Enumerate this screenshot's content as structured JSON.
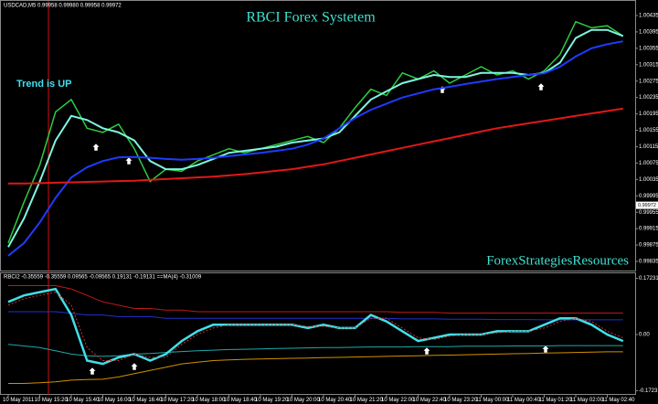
{
  "chart_data": [
    {
      "type": "line",
      "title": "RBCI Forex Systetem",
      "subtitle": "USDCAD,M5 0.99958 0.99980 0.99958 0.99972",
      "annotations": [
        "Trend is UP",
        "ForexStrategiesResources"
      ],
      "ylim": [
        0.99815,
        1.00455
      ],
      "yticks": [
        0.99835,
        0.99875,
        0.99915,
        0.99955,
        0.99995,
        1.00035,
        1.00075,
        1.00115,
        1.00155,
        1.00195,
        1.00235,
        1.00275,
        1.00315,
        1.00355,
        1.00395,
        1.00435
      ],
      "last_price": 0.99972,
      "grid": false,
      "series": [
        {
          "color": "#2ecc40",
          "dashed": false,
          "width": 1.5,
          "values": [
            0.9988,
            0.9998,
            1.0007,
            1.002,
            1.0023,
            1.0016,
            1.0015,
            1.0017,
            1.0011,
            1.0003,
            1.0006,
            1.00055,
            1.0008,
            1.00095,
            1.0011,
            1.001,
            1.0011,
            1.0012,
            1.0013,
            1.0014,
            1.00125,
            1.0016,
            1.0021,
            1.00255,
            1.0024,
            1.00295,
            1.0028,
            1.003,
            1.0027,
            1.0029,
            1.0031,
            1.0029,
            1.003,
            1.0028,
            1.003,
            1.0034,
            1.0042,
            1.00405,
            1.0041,
            1.00385
          ]
        },
        {
          "color": "#7ff5e0",
          "dashed": false,
          "width": 2,
          "values": [
            0.9987,
            0.9994,
            1.0003,
            1.0013,
            1.0019,
            1.0018,
            1.0016,
            1.0015,
            1.0013,
            1.0008,
            1.0006,
            1.0006,
            1.0007,
            1.00085,
            1.001,
            1.00105,
            1.0011,
            1.00115,
            1.00125,
            1.0013,
            1.00135,
            1.0015,
            1.0019,
            1.0023,
            1.0025,
            1.0027,
            1.0028,
            1.0029,
            1.00285,
            1.00285,
            1.00295,
            1.00295,
            1.00295,
            1.0029,
            1.00295,
            1.0032,
            1.0038,
            1.004,
            1.004,
            1.00385
          ]
        },
        {
          "color": "#1e3cff",
          "dashed": false,
          "width": 2,
          "values": [
            0.99849,
            0.9988,
            0.9993,
            0.9999,
            1.0004,
            1.00065,
            1.0008,
            1.00089,
            1.0009,
            1.00088,
            1.00085,
            1.00083,
            1.00085,
            1.00088,
            1.00092,
            1.00096,
            1.001,
            1.00105,
            1.0011,
            1.0012,
            1.00135,
            1.0016,
            1.00185,
            1.00205,
            1.0022,
            1.00235,
            1.00245,
            1.00255,
            1.00261,
            1.00268,
            1.00274,
            1.0028,
            1.00285,
            1.0029,
            1.00294,
            1.0031,
            1.00335,
            1.00355,
            1.00365,
            1.00372
          ]
        },
        {
          "color": "#e01818",
          "dashed": false,
          "width": 2,
          "values": [
            1.00025,
            1.00025,
            1.00026,
            1.00027,
            1.00028,
            1.00029,
            1.0003,
            1.00031,
            1.00032,
            1.00034,
            1.00036,
            1.00038,
            1.0004,
            1.00042,
            1.00045,
            1.00048,
            1.00052,
            1.00056,
            1.0006,
            1.00066,
            1.00072,
            1.0008,
            1.00088,
            1.00096,
            1.00104,
            1.00112,
            1.0012,
            1.00128,
            1.00136,
            1.00144,
            1.00152,
            1.0016,
            1.00166,
            1.00172,
            1.00178,
            1.00184,
            1.0019,
            1.00196,
            1.00202,
            1.00208
          ]
        }
      ]
    },
    {
      "type": "line",
      "title": "RBCI2 -0.35559 -0.35559 0.09565 -0.09565 0.19131 -0.19131 ==MA(4) -0.31009",
      "ylim": [
        -0.185,
        0.185
      ],
      "yticks": [
        -0.17231,
        {
          "value": 0,
          "label": "0.00"
        },
        0.17231
      ],
      "grid": false,
      "categories": [
        "10 May 2011",
        null,
        "10 May 15:20",
        null,
        "10 May 15:40",
        null,
        "10 May 16:00",
        null,
        "10 May 16:40",
        null,
        "10 May 17:20",
        null,
        "10 May 18:00",
        null,
        "10 May 18:40",
        null,
        "10 May 19:20",
        null,
        "10 May 20:00",
        null,
        "10 May 20:40",
        null,
        "10 May 21:20",
        null,
        "10 May 22:00",
        null,
        "10 May 22:40",
        null,
        "10 May 23:20",
        null,
        "11 May 00:00",
        null,
        "11 May 00:40",
        null,
        "11 May 01:20",
        null,
        "11 May 02:00",
        null,
        "11 May 02:40",
        null
      ],
      "series": [
        {
          "color": "#c01818",
          "dashed": false,
          "width": 1,
          "values": [
            0.15,
            0.15,
            0.15,
            0.15,
            0.14,
            0.12,
            0.1,
            0.09,
            0.08,
            0.08,
            0.075,
            0.075,
            0.07,
            0.07,
            0.07,
            0.07,
            0.07,
            0.07,
            0.07,
            0.07,
            0.07,
            0.07,
            0.07,
            0.07,
            0.07,
            0.068,
            0.068,
            0.068,
            0.066,
            0.066,
            0.066,
            0.066,
            0.066,
            0.066,
            0.066,
            0.066,
            0.066,
            0.066,
            0.066,
            0.066
          ]
        },
        {
          "color": "#2030d0",
          "dashed": false,
          "width": 1,
          "values": [
            0.07,
            0.07,
            0.07,
            0.07,
            0.065,
            0.06,
            0.06,
            0.055,
            0.055,
            0.055,
            0.05,
            0.05,
            0.05,
            0.05,
            0.05,
            0.05,
            0.05,
            0.05,
            0.05,
            0.05,
            0.05,
            0.05,
            0.05,
            0.05,
            0.05,
            0.048,
            0.048,
            0.048,
            0.047,
            0.047,
            0.047,
            0.046,
            0.046,
            0.046,
            0.045,
            0.045,
            0.045,
            0.045,
            0.045,
            0.045
          ]
        },
        {
          "color": "#20a8a8",
          "dashed": false,
          "width": 1,
          "values": [
            -0.03,
            -0.035,
            -0.04,
            -0.05,
            -0.06,
            -0.065,
            -0.067,
            -0.065,
            -0.06,
            -0.058,
            -0.055,
            -0.052,
            -0.05,
            -0.048,
            -0.046,
            -0.045,
            -0.044,
            -0.043,
            -0.042,
            -0.041,
            -0.04,
            -0.04,
            -0.039,
            -0.038,
            -0.038,
            -0.038,
            -0.037,
            -0.037,
            -0.037,
            -0.036,
            -0.036,
            -0.036,
            -0.035,
            -0.035,
            -0.035,
            -0.034,
            -0.034,
            -0.034,
            -0.034,
            -0.034
          ]
        },
        {
          "color": "#d09000",
          "dashed": false,
          "width": 1,
          "values": [
            -0.15,
            -0.15,
            -0.148,
            -0.145,
            -0.14,
            -0.138,
            -0.137,
            -0.13,
            -0.12,
            -0.11,
            -0.1,
            -0.09,
            -0.085,
            -0.08,
            -0.078,
            -0.076,
            -0.075,
            -0.074,
            -0.073,
            -0.072,
            -0.071,
            -0.07,
            -0.069,
            -0.068,
            -0.067,
            -0.066,
            -0.065,
            -0.064,
            -0.063,
            -0.062,
            -0.061,
            -0.06,
            -0.059,
            -0.058,
            -0.057,
            -0.056,
            -0.055,
            -0.054,
            -0.053,
            -0.053
          ]
        },
        {
          "color": "#40e0e8",
          "dashed": false,
          "width": 2.5,
          "values": [
            0.1,
            0.12,
            0.13,
            0.14,
            0.06,
            -0.08,
            -0.09,
            -0.07,
            -0.06,
            -0.08,
            -0.06,
            -0.02,
            0.01,
            0.03,
            0.03,
            0.03,
            0.03,
            0.03,
            0.03,
            0.02,
            0.03,
            0.02,
            0.02,
            0.06,
            0.04,
            0.01,
            -0.02,
            -0.01,
            0.0,
            0.0,
            0.0,
            0.01,
            0.01,
            0.01,
            0.03,
            0.05,
            0.05,
            0.03,
            0.0,
            -0.02
          ]
        },
        {
          "color": "#d03030",
          "dashed": true,
          "width": 1,
          "values": [
            0.09,
            0.11,
            0.12,
            0.13,
            0.09,
            -0.04,
            -0.08,
            -0.08,
            -0.06,
            -0.07,
            -0.07,
            -0.03,
            0.0,
            0.02,
            0.03,
            0.03,
            0.03,
            0.03,
            0.03,
            0.025,
            0.025,
            0.02,
            0.02,
            0.05,
            0.05,
            0.02,
            -0.01,
            -0.015,
            -0.005,
            0.0,
            0.0,
            0.005,
            0.01,
            0.01,
            0.02,
            0.04,
            0.05,
            0.04,
            0.01,
            -0.01
          ]
        }
      ]
    }
  ]
}
